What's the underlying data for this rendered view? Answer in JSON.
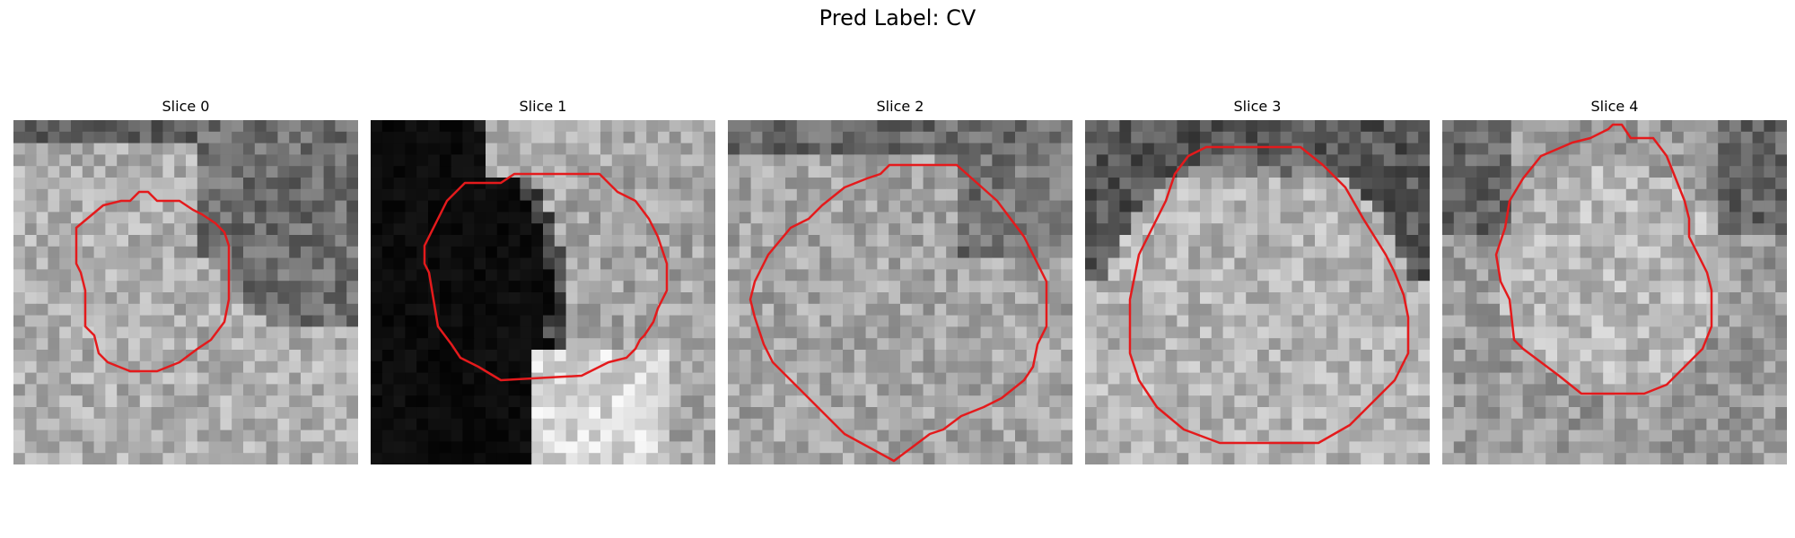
{
  "figure": {
    "title": "Pred Label: CV"
  },
  "slices": [
    {
      "title": "Slice 0"
    },
    {
      "title": "Slice 1"
    },
    {
      "title": "Slice 2"
    },
    {
      "title": "Slice 3"
    },
    {
      "title": "Slice 4"
    }
  ],
  "colors": {
    "contour": "#e41a1c"
  }
}
